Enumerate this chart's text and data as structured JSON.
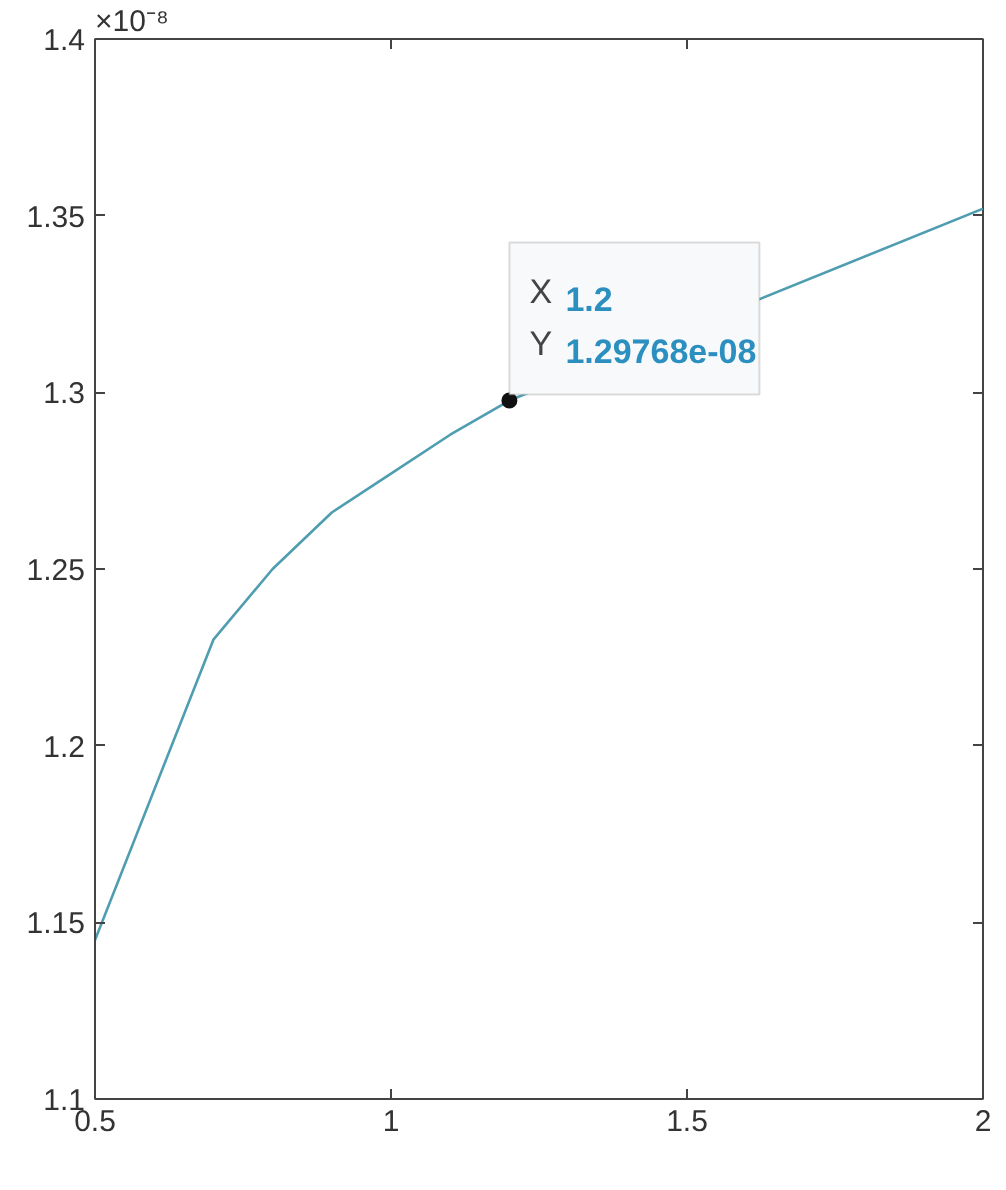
{
  "chart_data": {
    "type": "line",
    "x": [
      0.5,
      0.7,
      0.8,
      0.9,
      1.0,
      1.1,
      1.2,
      2.0
    ],
    "series": [
      {
        "color": "#4f9db0",
        "values": [
          1.145,
          1.23,
          1.25,
          1.266,
          1.277,
          1.288,
          1.29768,
          1.352
        ]
      }
    ],
    "xlim": [
      0.5,
      2
    ],
    "xticks": [
      0.5,
      1,
      1.5,
      2
    ],
    "ylim": [
      1.1,
      1.4
    ],
    "yticks": [
      1.1,
      1.15,
      1.2,
      1.25,
      1.3,
      1.35,
      1.4
    ],
    "grid": false,
    "marker": "none",
    "line_style": "solid",
    "annotations": [
      "×10⁻⁸",
      {
        "text": "X 1.2\nY 1.29768e-08",
        "x": 1.2,
        "y": 1.29768
      }
    ]
  }
}
